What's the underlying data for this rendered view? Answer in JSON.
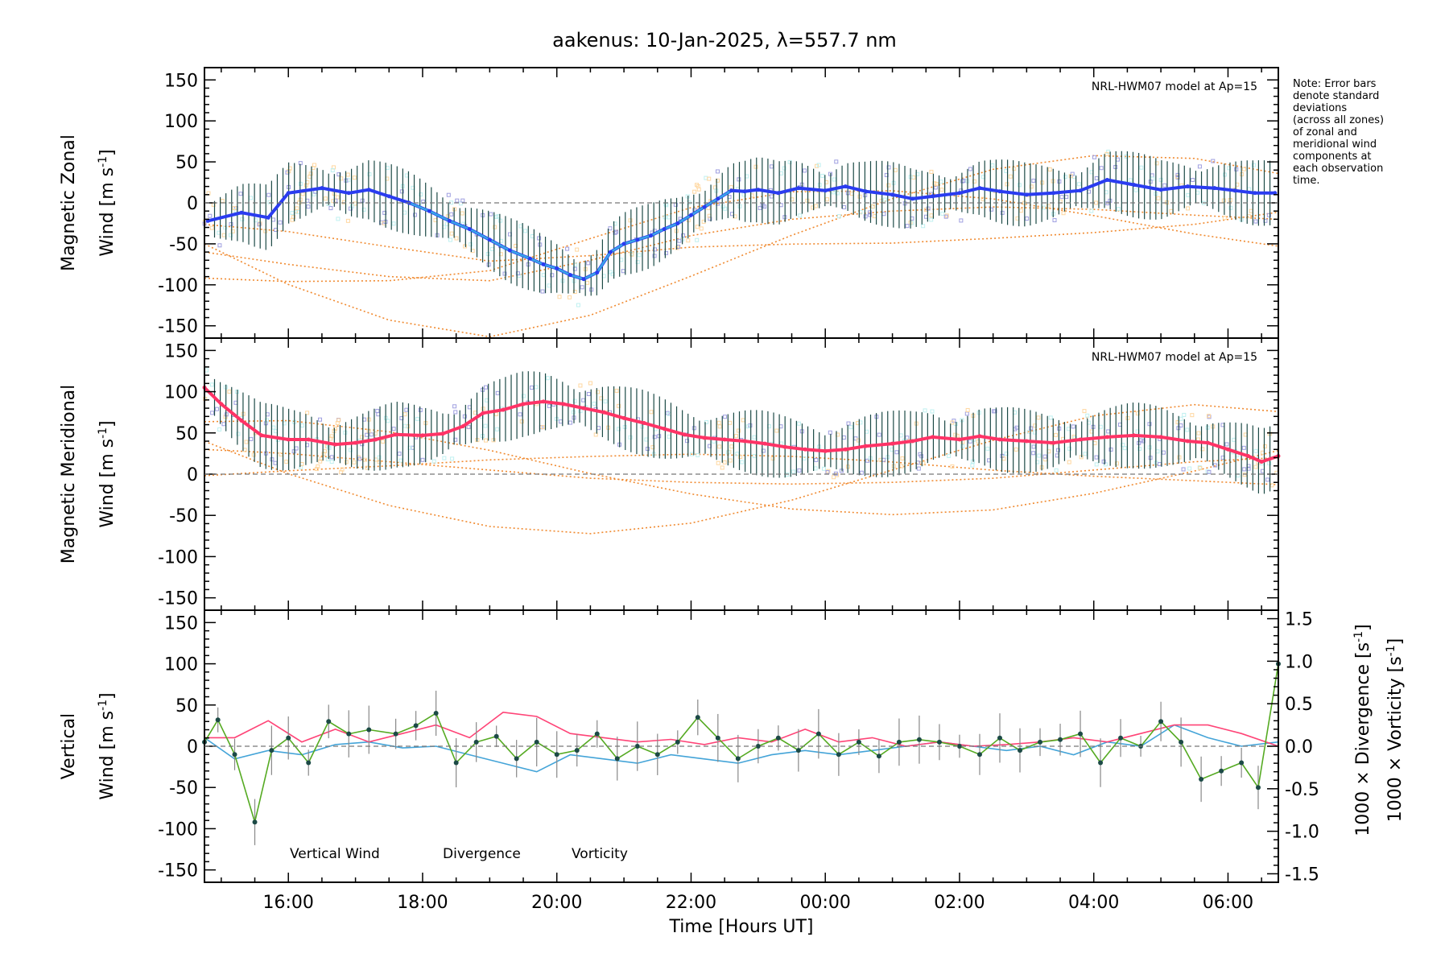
{
  "title": "aakenus: 10-Jan-2025, λ=557.7 nm",
  "note": [
    "Note: Error bars",
    "denote standard",
    "deviations",
    "(across all zones)",
    "of zonal and",
    "meridional wind",
    "components at",
    "each observation",
    "time."
  ],
  "model_label": "NRL-HWM07 model at Ap=15",
  "colors": {
    "zonal": "#2a3cf0",
    "zonal_light": "#39a6e6",
    "meridional": "#ff3366",
    "vertical": "#55aa22",
    "divergence": "#44a4d8",
    "vorticity": "#ff4477",
    "model": "#f08a30",
    "scatter": "#9f9fe0",
    "errorbar": "#1c4a46"
  },
  "chart_data": [
    {
      "type": "line",
      "panel": "zonal",
      "ylabel_line1": "Magnetic Zonal",
      "ylabel_line2": "Wind [m s",
      "ylabel_sup": "-1",
      "ylabel_close": "]",
      "ylim": [
        -165,
        165
      ],
      "yticks": [
        -150,
        -100,
        -50,
        0,
        50,
        100,
        150
      ],
      "xlim": [
        14.75,
        30.75
      ],
      "series": [
        {
          "name": "Zonal Wind",
          "x": [
            14.8,
            15.3,
            15.7,
            16.0,
            16.5,
            16.9,
            17.2,
            17.5,
            17.8,
            18.1,
            18.4,
            18.7,
            19.0,
            19.3,
            19.6,
            19.8,
            20.0,
            20.2,
            20.4,
            20.6,
            20.8,
            21.0,
            21.2,
            21.4,
            21.6,
            21.8,
            22.0,
            22.2,
            22.4,
            22.6,
            22.8,
            23.0,
            23.3,
            23.6,
            24.0,
            24.3,
            24.6,
            25.0,
            25.3,
            25.6,
            26.0,
            26.3,
            26.6,
            27.0,
            27.4,
            27.8,
            28.2,
            28.6,
            29.0,
            29.4,
            29.8,
            30.1,
            30.4,
            30.7
          ],
          "values": [
            -22,
            -12,
            -18,
            12,
            18,
            12,
            16,
            8,
            0,
            -10,
            -22,
            -32,
            -45,
            -58,
            -68,
            -75,
            -80,
            -88,
            -93,
            -85,
            -60,
            -50,
            -45,
            -40,
            -32,
            -25,
            -15,
            -5,
            5,
            15,
            14,
            16,
            12,
            18,
            15,
            20,
            14,
            10,
            5,
            8,
            12,
            18,
            14,
            10,
            12,
            15,
            28,
            22,
            16,
            20,
            18,
            15,
            12,
            12
          ]
        }
      ],
      "model_x": [
        14.75,
        16.0,
        17.5,
        19.0,
        20.5,
        22.0,
        23.5,
        25.0,
        26.5,
        28.0,
        29.5,
        30.75
      ],
      "model_values": [
        -60,
        -75,
        -90,
        -95,
        -70,
        -40,
        -20,
        -10,
        -5,
        -8,
        -15,
        -20
      ]
    },
    {
      "type": "line",
      "panel": "meridional",
      "ylabel_line1": "Magnetic Meridional",
      "ylabel_line2": "Wind [m s",
      "ylabel_sup": "-1",
      "ylabel_close": "]",
      "ylim": [
        -165,
        165
      ],
      "yticks": [
        -150,
        -100,
        -50,
        0,
        50,
        100,
        150
      ],
      "xlim": [
        14.75,
        30.75
      ],
      "series": [
        {
          "name": "Meridional Wind",
          "x": [
            14.75,
            15.0,
            15.3,
            15.6,
            16.0,
            16.3,
            16.7,
            17.0,
            17.3,
            17.6,
            18.0,
            18.3,
            18.6,
            18.9,
            19.2,
            19.5,
            19.8,
            20.1,
            20.4,
            20.7,
            21.0,
            21.3,
            21.6,
            21.9,
            22.2,
            22.5,
            22.8,
            23.1,
            23.4,
            23.7,
            24.0,
            24.3,
            24.6,
            25.0,
            25.3,
            25.6,
            26.0,
            26.3,
            26.6,
            27.0,
            27.4,
            27.8,
            28.2,
            28.6,
            29.0,
            29.4,
            29.7,
            30.0,
            30.3,
            30.5,
            30.75
          ],
          "values": [
            105,
            85,
            65,
            47,
            42,
            42,
            36,
            38,
            42,
            48,
            47,
            49,
            58,
            74,
            78,
            85,
            88,
            85,
            80,
            75,
            68,
            62,
            55,
            48,
            44,
            42,
            40,
            37,
            33,
            30,
            28,
            30,
            34,
            37,
            40,
            45,
            42,
            46,
            42,
            40,
            38,
            42,
            45,
            47,
            45,
            40,
            38,
            30,
            22,
            15,
            22
          ]
        }
      ],
      "model_x": [
        14.75,
        16.0,
        17.5,
        19.0,
        20.5,
        22.0,
        23.5,
        25.0,
        26.5,
        28.0,
        29.5,
        30.75
      ],
      "model_values": [
        30,
        25,
        15,
        5,
        -5,
        -10,
        -12,
        -10,
        -5,
        5,
        15,
        20
      ]
    },
    {
      "type": "line",
      "panel": "vertical",
      "ylabel_line1": "Vertical",
      "ylabel_line2": "Wind [m s",
      "ylabel_sup": "-1",
      "ylabel_close": "]",
      "ylim": [
        -165,
        165
      ],
      "yticks": [
        -150,
        -100,
        -50,
        0,
        50,
        100,
        150
      ],
      "y2lim": [
        -1.6,
        1.6
      ],
      "y2ticks": [
        -1.5,
        -1.0,
        -0.5,
        0.0,
        0.5,
        1.0,
        1.5
      ],
      "y2label_div": "1000 × Divergence [s",
      "y2label_vor": "1000 × Vorticity [s",
      "y2label_sup": "-1",
      "y2label_close": "]",
      "xlim": [
        14.75,
        30.75
      ],
      "xticks": [
        16,
        18,
        20,
        22,
        24,
        26,
        28,
        30
      ],
      "xticklabels": [
        "16:00",
        "18:00",
        "20:00",
        "22:00",
        "00:00",
        "02:00",
        "04:00",
        "06:00"
      ],
      "xlabel": "Time [Hours UT]",
      "legend": [
        "Vertical Wind",
        "Divergence",
        "Vorticity"
      ],
      "series": [
        {
          "name": "Vertical Wind",
          "x": [
            14.75,
            14.95,
            15.2,
            15.5,
            15.75,
            16.0,
            16.3,
            16.6,
            16.9,
            17.2,
            17.6,
            17.9,
            18.2,
            18.5,
            18.8,
            19.1,
            19.4,
            19.7,
            20.0,
            20.3,
            20.6,
            20.9,
            21.2,
            21.5,
            21.8,
            22.1,
            22.4,
            22.7,
            23.0,
            23.3,
            23.6,
            23.9,
            24.2,
            24.5,
            24.8,
            25.1,
            25.4,
            25.7,
            26.0,
            26.3,
            26.6,
            26.9,
            27.2,
            27.5,
            27.8,
            28.1,
            28.4,
            28.7,
            29.0,
            29.3,
            29.6,
            29.9,
            30.2,
            30.45,
            30.75
          ],
          "values": [
            5,
            32,
            -10,
            -92,
            -5,
            10,
            -20,
            30,
            15,
            20,
            15,
            25,
            40,
            -20,
            5,
            12,
            -15,
            5,
            -10,
            -5,
            15,
            -15,
            0,
            -10,
            5,
            35,
            10,
            -15,
            0,
            10,
            -5,
            15,
            -10,
            5,
            -12,
            5,
            8,
            5,
            0,
            -10,
            10,
            -5,
            5,
            8,
            15,
            -20,
            10,
            0,
            30,
            5,
            -40,
            -30,
            -20,
            -50,
            100
          ]
        },
        {
          "name": "Divergence",
          "x": [
            14.75,
            15.2,
            15.7,
            16.2,
            16.7,
            17.2,
            17.7,
            18.2,
            18.7,
            19.2,
            19.7,
            20.2,
            20.7,
            21.2,
            21.7,
            22.2,
            22.7,
            23.2,
            23.7,
            24.2,
            24.7,
            25.2,
            25.7,
            26.2,
            26.7,
            27.2,
            27.7,
            28.2,
            28.7,
            29.2,
            29.7,
            30.2,
            30.75
          ],
          "values": [
            0.1,
            -0.15,
            -0.05,
            -0.1,
            0.02,
            0.05,
            -0.02,
            0.0,
            -0.1,
            -0.2,
            -0.3,
            -0.1,
            -0.15,
            -0.2,
            -0.1,
            -0.15,
            -0.2,
            -0.1,
            -0.05,
            -0.1,
            -0.05,
            0.0,
            0.05,
            0.0,
            -0.05,
            0.0,
            -0.1,
            0.05,
            0.0,
            0.25,
            0.1,
            0.0,
            0.05
          ]
        },
        {
          "name": "Vorticity",
          "x": [
            14.75,
            15.2,
            15.7,
            16.2,
            16.7,
            17.2,
            17.7,
            18.2,
            18.7,
            19.2,
            19.7,
            20.2,
            20.7,
            21.2,
            21.7,
            22.2,
            22.7,
            23.2,
            23.7,
            24.2,
            24.7,
            25.2,
            25.7,
            26.2,
            26.7,
            27.2,
            27.7,
            28.2,
            28.7,
            29.2,
            29.7,
            30.2,
            30.75
          ],
          "values": [
            0.1,
            0.1,
            0.3,
            0.05,
            0.2,
            0.05,
            0.15,
            0.25,
            0.1,
            0.4,
            0.35,
            0.15,
            0.1,
            0.05,
            0.08,
            0.02,
            0.1,
            0.05,
            0.2,
            0.05,
            0.1,
            0.0,
            0.05,
            0.0,
            0.02,
            0.05,
            0.1,
            0.05,
            0.15,
            0.25,
            0.25,
            0.15,
            0.0
          ]
        }
      ]
    }
  ]
}
